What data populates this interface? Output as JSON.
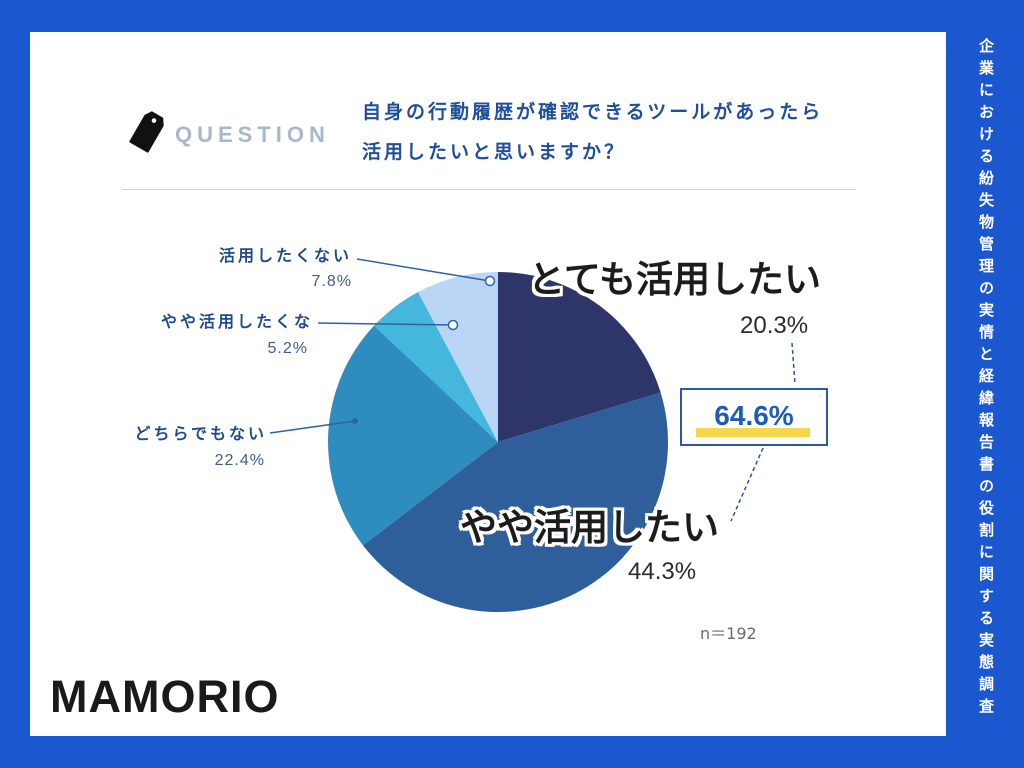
{
  "colors": {
    "background": "#1b58cf",
    "accent_text": "#1f4f98",
    "highlight": "#f5d74a"
  },
  "side_title": "企業における紛失物管理の実情と経緯報告書の役割に関する実態調査",
  "question": {
    "icon": "tag-icon",
    "tag": "QUESTION",
    "line1": "自身の行動履歴が確認できるツールがあったら",
    "line2": "活用したいと思いますか？"
  },
  "chart_data": {
    "type": "pie",
    "slices": [
      {
        "label": "とても活用したい",
        "value": 20.3,
        "display": "20.3%",
        "color": "#2e3569"
      },
      {
        "label": "やや活用したい",
        "value": 44.3,
        "display": "44.3%",
        "color": "#2f5f9a"
      },
      {
        "label": "どちらでもない",
        "value": 22.4,
        "display": "22.4%",
        "color": "#2e8cbf"
      },
      {
        "label": "やや活用したくな",
        "value": 5.2,
        "display": "5.2%",
        "color": "#45b6dc"
      },
      {
        "label": "活用したくない",
        "value": 7.8,
        "display": "7.8%",
        "color": "#bad5f6"
      }
    ],
    "callout": "64.6%",
    "sample_size": "n＝192"
  },
  "brand": {
    "logo": "MAMORIO"
  }
}
